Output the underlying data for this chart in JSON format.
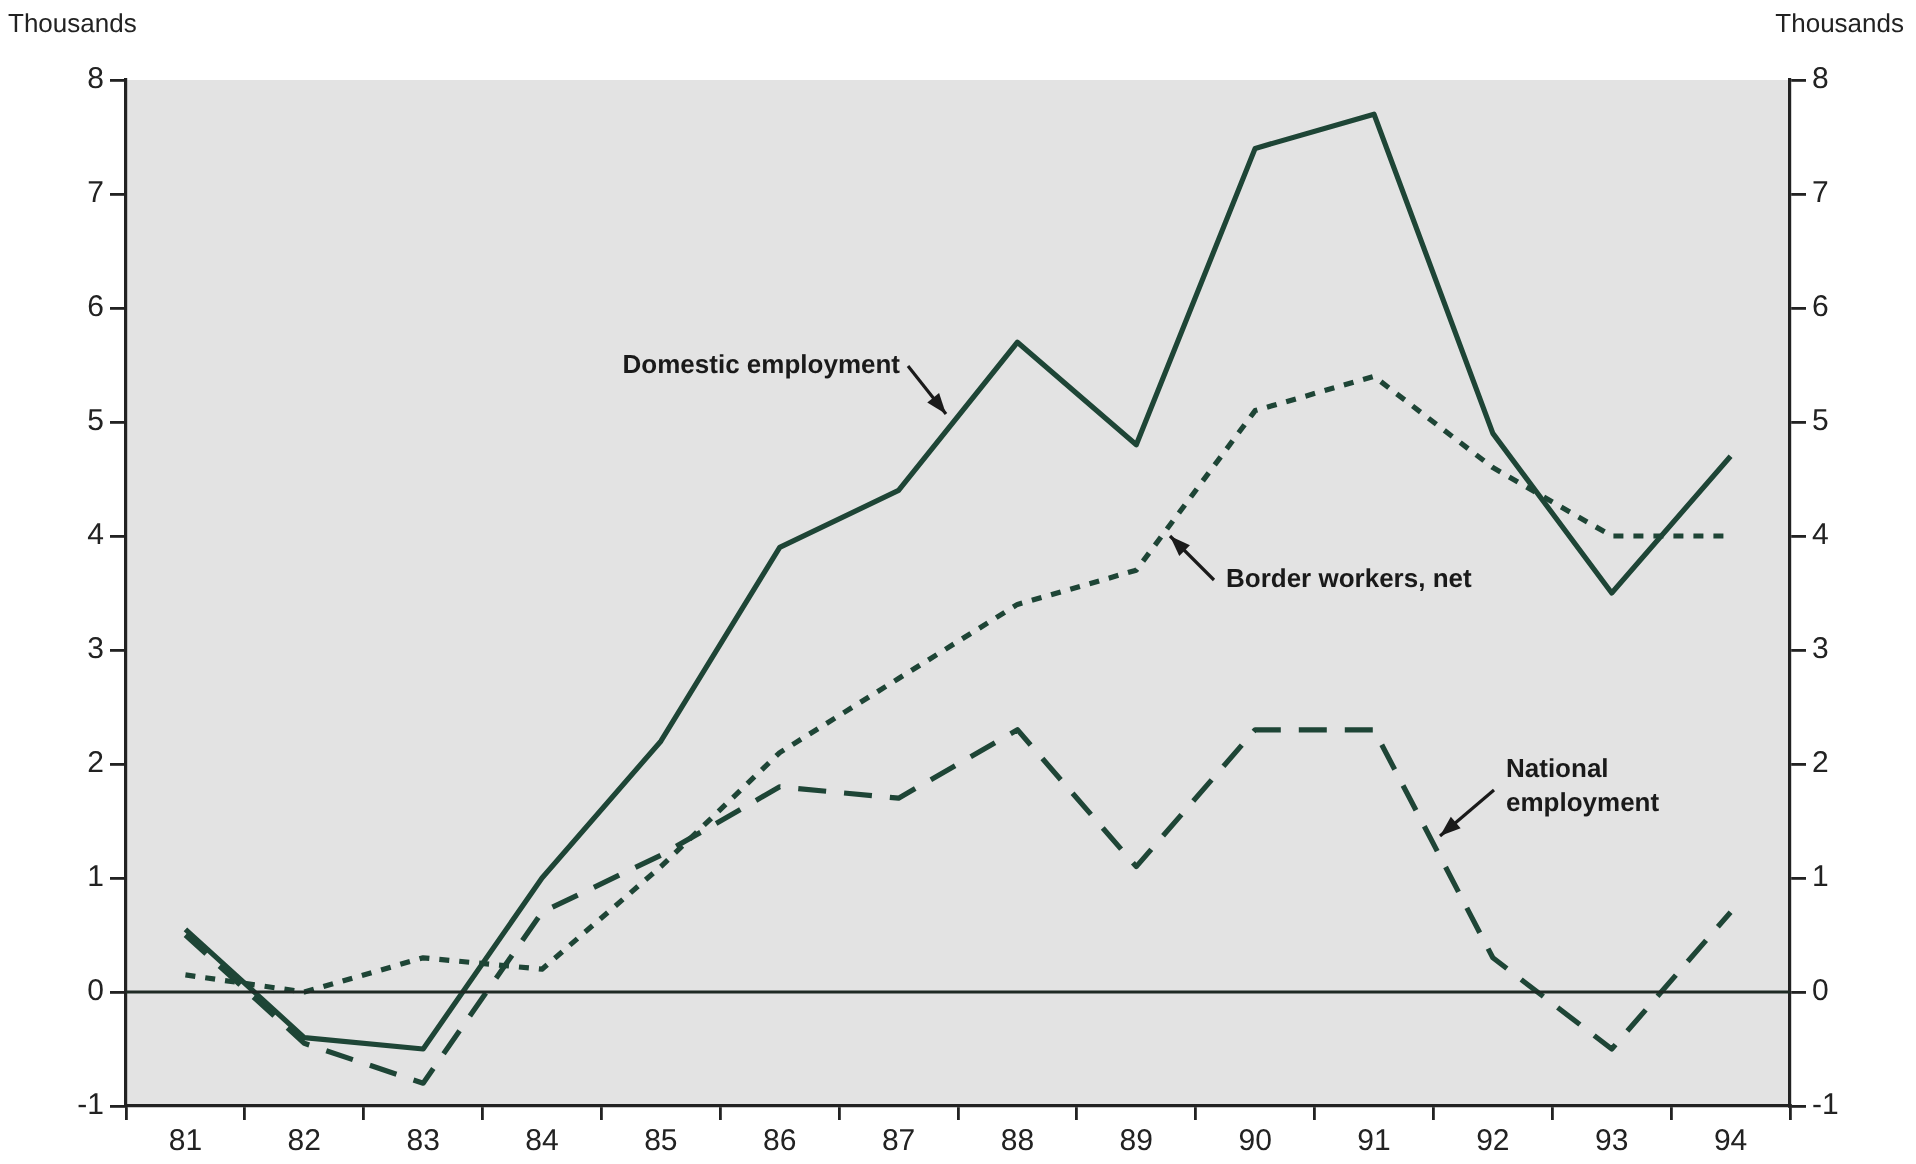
{
  "chart_data": {
    "type": "line",
    "ylabel": "Thousands",
    "y2label": "Thousands",
    "categories": [
      "81",
      "82",
      "83",
      "84",
      "85",
      "86",
      "87",
      "88",
      "89",
      "90",
      "91",
      "92",
      "93",
      "94"
    ],
    "series": [
      {
        "name": "Domestic employment",
        "color": "#1e4536",
        "line_style": "solid",
        "values": [
          0.55,
          -0.4,
          -0.5,
          1.0,
          2.2,
          3.9,
          4.4,
          5.7,
          4.8,
          7.4,
          7.7,
          4.9,
          3.5,
          4.7
        ]
      },
      {
        "name": "Border workers, net",
        "color": "#1e4536",
        "line_style": "dotted",
        "values": [
          0.15,
          0.0,
          0.3,
          0.2,
          1.1,
          2.1,
          2.75,
          3.4,
          3.7,
          5.1,
          5.4,
          4.6,
          4.0,
          4.0
        ]
      },
      {
        "name": "National\nemployment",
        "color": "#1e4536",
        "line_style": "dashed",
        "values": [
          0.5,
          -0.45,
          -0.8,
          0.7,
          1.2,
          1.8,
          1.7,
          2.3,
          1.1,
          2.3,
          2.3,
          0.3,
          -0.5,
          0.7
        ]
      }
    ],
    "ylim": [
      -1,
      8
    ],
    "yticks": [
      -1,
      0,
      1,
      2,
      3,
      4,
      5,
      6,
      7,
      8
    ],
    "y2lim": [
      -1,
      8
    ],
    "y2ticks": [
      -1,
      0,
      1,
      2,
      3,
      4,
      5,
      6,
      7,
      8
    ],
    "ref_lines": [
      {
        "axis": "y",
        "value": 0,
        "color": "#1e2a24"
      }
    ],
    "grid": false,
    "legend": false,
    "marker": "none"
  }
}
